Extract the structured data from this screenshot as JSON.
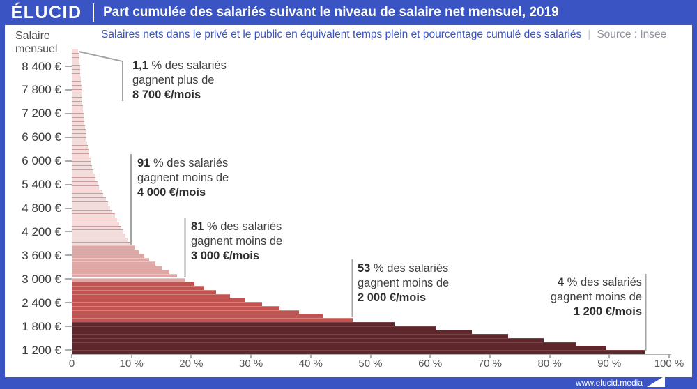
{
  "header": {
    "logo": "ÉLUCID",
    "title": "Part cumulée des salariés suivant le niveau de salaire net mensuel, 2019"
  },
  "subtitle": {
    "text": "Salaires nets dans le privé et le public en équivalent temps plein et pourcentage cumulé des salariés",
    "separator": "|",
    "source": "Source : Insee"
  },
  "footer": {
    "url": "www.elucid.media"
  },
  "colors": {
    "accent_blue": "#3A54C4",
    "annotation_line": "#A3A3A3",
    "band_light": "#F2DCDC",
    "band_light_line": "#CA9C9C",
    "band_salmon": "#DFA8A6",
    "band_salmon_line": "#EAC5C3",
    "band_medium": "#C15350",
    "band_medium_line": "#D28380",
    "band_dark": "#5E272B",
    "band_dark_line": "#7C4146"
  },
  "chart_data": {
    "type": "bar",
    "orientation": "horizontal",
    "title": "Part cumulée des salariés suivant le niveau de salaire net mensuel, 2019",
    "ylabel": "Salaire mensuel",
    "xlabel": "Pourcentage cumulé des salariés",
    "x_unit": "%",
    "xlim": [
      0,
      100
    ],
    "salary_step_eur": 100,
    "bars_note": "each pair = [net monthly salary in EUR, share of employees earning at least that salary, in %]",
    "bars": [
      [
        1200,
        96
      ],
      [
        1300,
        89.5
      ],
      [
        1400,
        84.5
      ],
      [
        1500,
        79
      ],
      [
        1600,
        73
      ],
      [
        1700,
        67
      ],
      [
        1800,
        61
      ],
      [
        1900,
        54
      ],
      [
        2000,
        47
      ],
      [
        2100,
        42
      ],
      [
        2200,
        38
      ],
      [
        2300,
        34.8
      ],
      [
        2400,
        31.8
      ],
      [
        2500,
        29
      ],
      [
        2600,
        26.5
      ],
      [
        2700,
        24.2
      ],
      [
        2800,
        22.2
      ],
      [
        2900,
        20.5
      ],
      [
        3000,
        19
      ],
      [
        3100,
        17.6
      ],
      [
        3200,
        16.3
      ],
      [
        3300,
        15.1
      ],
      [
        3400,
        14
      ],
      [
        3500,
        13
      ],
      [
        3600,
        12.1
      ],
      [
        3700,
        11.3
      ],
      [
        3800,
        10.5
      ],
      [
        3900,
        9.8
      ],
      [
        4000,
        9.3
      ],
      [
        4100,
        8.9
      ],
      [
        4200,
        8.6
      ],
      [
        4300,
        8.3
      ],
      [
        4400,
        7.9
      ],
      [
        4500,
        7.6
      ],
      [
        4600,
        7.2
      ],
      [
        4700,
        6.8
      ],
      [
        4800,
        6.4
      ],
      [
        4900,
        6.1
      ],
      [
        5000,
        5.7
      ],
      [
        5100,
        5.3
      ],
      [
        5200,
        5
      ],
      [
        5300,
        4.6
      ],
      [
        5400,
        4.3
      ],
      [
        5500,
        4
      ],
      [
        5600,
        3.8
      ],
      [
        5700,
        3.6
      ],
      [
        5800,
        3.4
      ],
      [
        5900,
        3.2
      ],
      [
        6000,
        3.1
      ],
      [
        6100,
        2.95
      ],
      [
        6200,
        2.8
      ],
      [
        6300,
        2.7
      ],
      [
        6400,
        2.6
      ],
      [
        6500,
        2.5
      ],
      [
        6600,
        2.4
      ],
      [
        6700,
        2.3
      ],
      [
        6800,
        2.2
      ],
      [
        6900,
        2.1
      ],
      [
        7000,
        2
      ],
      [
        7100,
        1.95
      ],
      [
        7200,
        1.9
      ],
      [
        7300,
        1.85
      ],
      [
        7400,
        1.8
      ],
      [
        7500,
        1.75
      ],
      [
        7600,
        1.7
      ],
      [
        7700,
        1.65
      ],
      [
        7800,
        1.6
      ],
      [
        7900,
        1.55
      ],
      [
        8000,
        1.5
      ],
      [
        8100,
        1.45
      ],
      [
        8200,
        1.4
      ],
      [
        8300,
        1.35
      ],
      [
        8400,
        1.3
      ],
      [
        8500,
        1.25
      ],
      [
        8600,
        1.2
      ],
      [
        8700,
        1.1
      ]
    ],
    "color_bands": [
      {
        "min_salary": 3900,
        "band": "band_light"
      },
      {
        "min_salary": 3000,
        "band": "band_salmon"
      },
      {
        "min_salary": 2000,
        "band": "band_medium"
      },
      {
        "min_salary": 1200,
        "band": "band_dark"
      }
    ],
    "y_ticks": [
      [
        8400,
        "8 400 €"
      ],
      [
        7800,
        "7 800 €"
      ],
      [
        7200,
        "7 200 €"
      ],
      [
        6600,
        "6 600 €"
      ],
      [
        6000,
        "6 000 €"
      ],
      [
        5400,
        "5 400 €"
      ],
      [
        4800,
        "4 800 €"
      ],
      [
        4200,
        "4 200 €"
      ],
      [
        3600,
        "3 600 €"
      ],
      [
        3000,
        "3 000 €"
      ],
      [
        2400,
        "2 400 €"
      ],
      [
        1800,
        "1 800 €"
      ],
      [
        1200,
        "1 200 €"
      ]
    ],
    "x_ticks": [
      [
        0,
        "0"
      ],
      [
        10,
        "10 %"
      ],
      [
        20,
        "20 %"
      ],
      [
        30,
        "30 %"
      ],
      [
        40,
        "40 %"
      ],
      [
        50,
        "50 %"
      ],
      [
        60,
        "60 %"
      ],
      [
        70,
        "70 %"
      ],
      [
        80,
        "80 %"
      ],
      [
        90,
        "90 %"
      ],
      [
        100,
        "100 %"
      ]
    ],
    "annotations": [
      {
        "pct": "1,1",
        "pct_unit": "%",
        "rest": "des salariés",
        "verb": "gagnent plus de",
        "amount": "8 700 €/mois"
      },
      {
        "pct": "91",
        "pct_unit": "%",
        "rest": "des salariés",
        "verb": "gagnent moins de",
        "amount": "4 000 €/mois"
      },
      {
        "pct": "81",
        "pct_unit": "%",
        "rest": "des salariés",
        "verb": "gagnent moins de",
        "amount": "3 000 €/mois"
      },
      {
        "pct": "53",
        "pct_unit": "%",
        "rest": "des salariés",
        "verb": "gagnent moins de",
        "amount": "2 000 €/mois"
      },
      {
        "pct": "4",
        "pct_unit": "%",
        "rest": "des salariés",
        "verb": "gagnent moins de",
        "amount": "1 200 €/mois"
      }
    ]
  }
}
